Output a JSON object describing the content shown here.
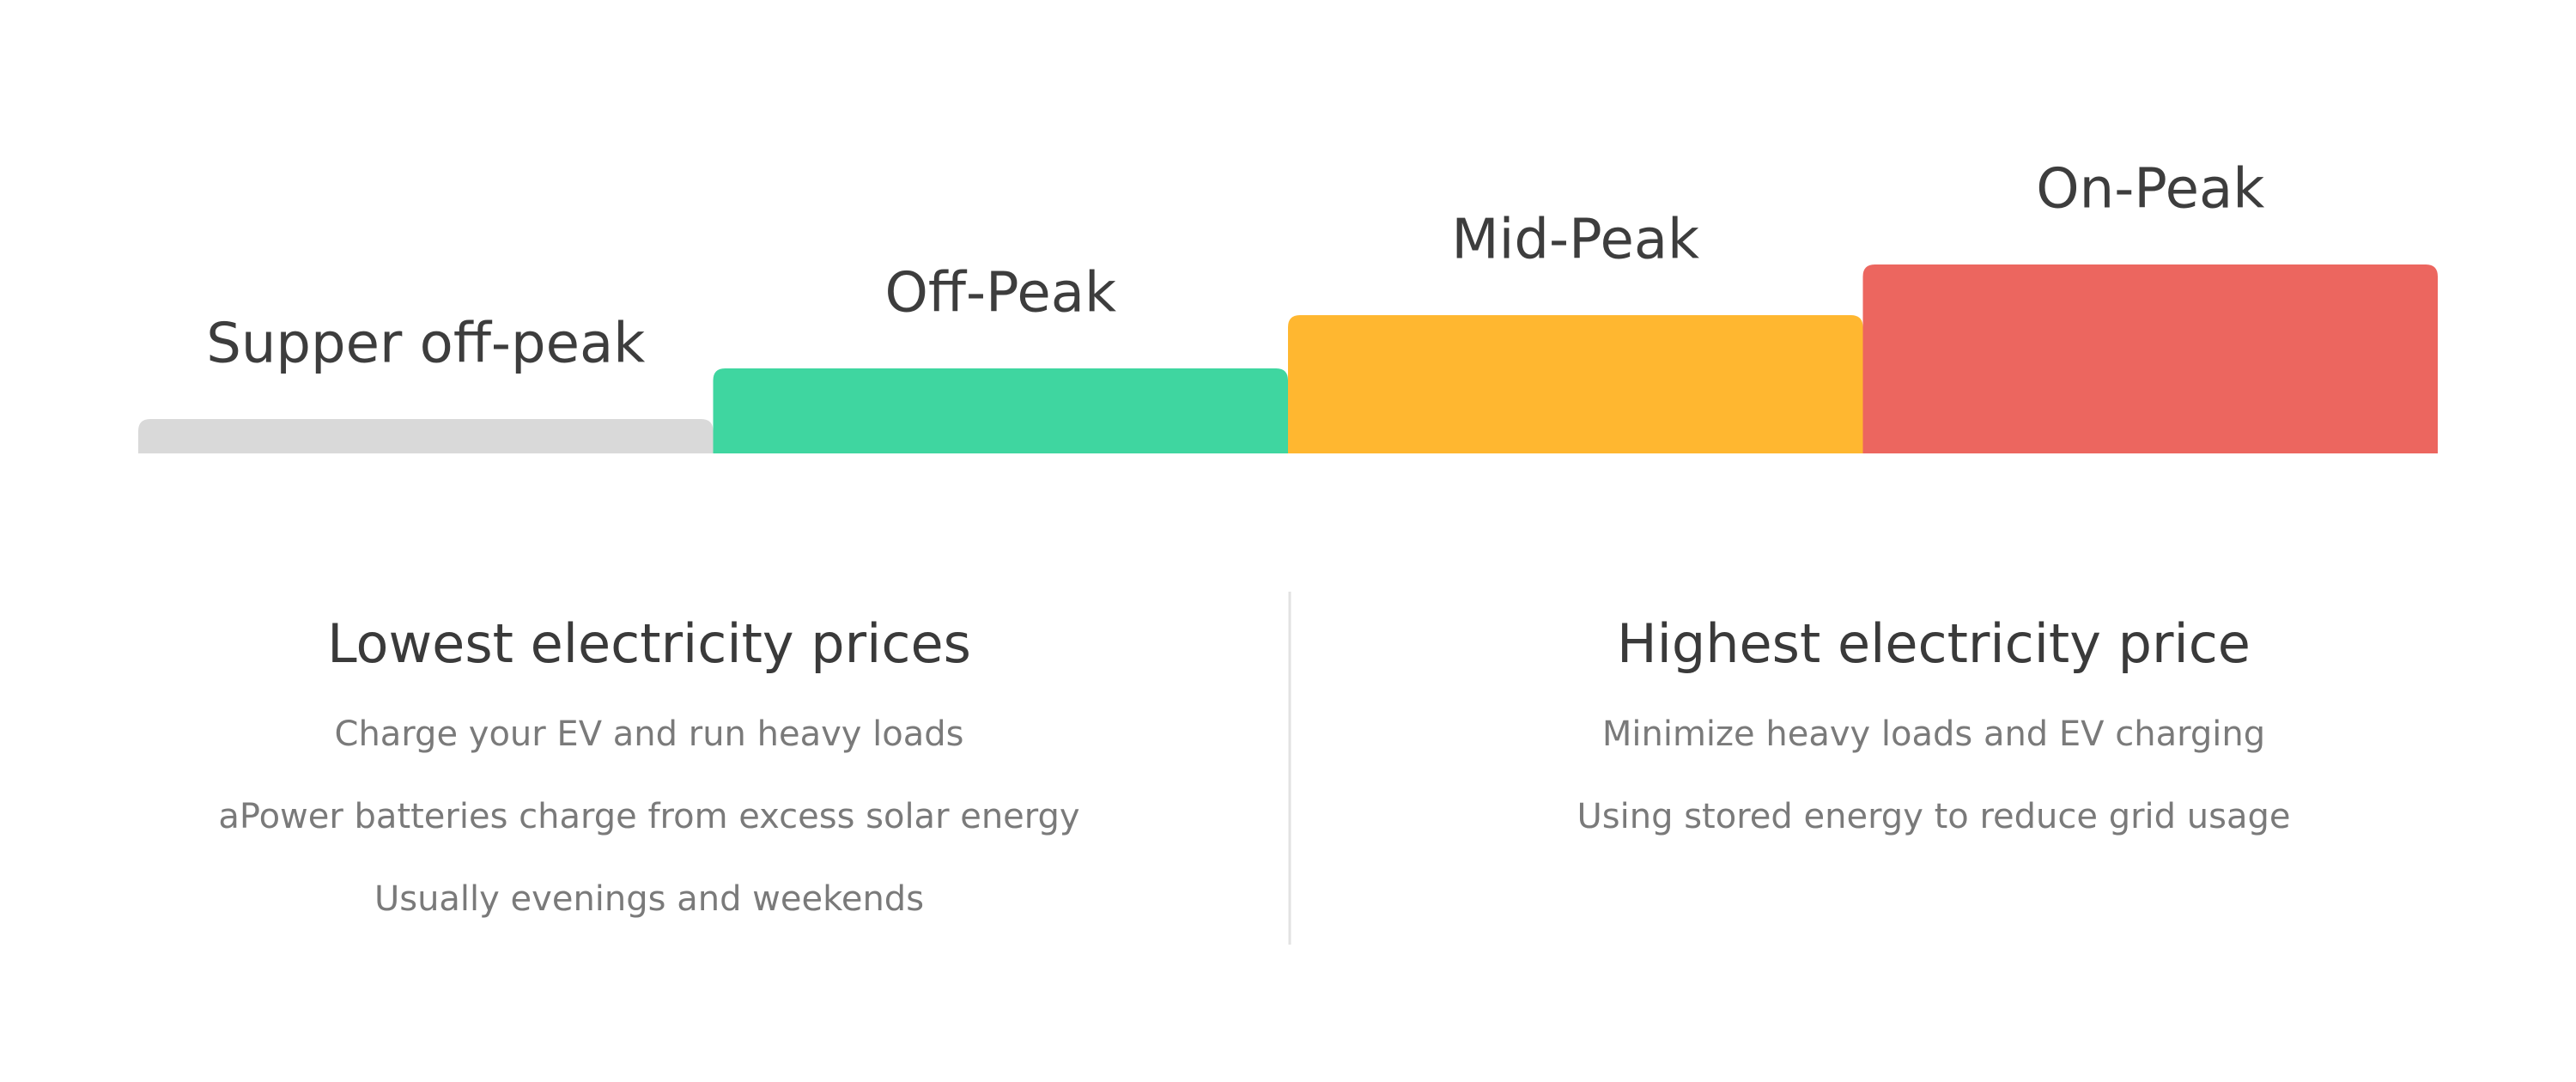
{
  "tiers": [
    {
      "label": "Supper off-peak",
      "color": "#d9d9d9"
    },
    {
      "label": "Off-Peak",
      "color": "#3fd6a0"
    },
    {
      "label": "Mid-Peak",
      "color": "#ffb730"
    },
    {
      "label": "On-Peak",
      "color": "#ec665f"
    }
  ],
  "sections": [
    {
      "title": "Lowest electricity prices",
      "lines": [
        "Charge your EV and run heavy loads",
        "aPower batteries charge from excess solar energy",
        "Usually evenings and weekends"
      ]
    },
    {
      "title": "Highest electricity price",
      "lines": [
        "Minimize heavy loads and EV charging",
        "Using stored energy to reduce grid usage"
      ]
    }
  ]
}
